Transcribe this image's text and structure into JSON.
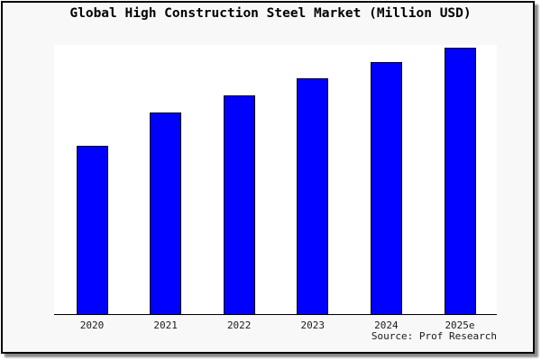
{
  "chart_data": {
    "type": "bar",
    "title": "Global High Construction Steel Market (Million USD)",
    "categories": [
      "2020",
      "2021",
      "2022",
      "2023",
      "2024",
      "2025e"
    ],
    "values": [
      63.3,
      75.8,
      82.2,
      88.6,
      94.6,
      100
    ],
    "values_note": "y-axis has no ticks or labels; values are relative bar heights as percent of tallest bar (2025e = 100)",
    "xlabel": "",
    "ylabel": "",
    "grid": false,
    "legend": false,
    "bar_color": "#0000ff",
    "bar_border_color": "#000000",
    "plot_background": "#ffffff",
    "canvas_background": "#f8f8f8",
    "source_note": "Source: Prof Research"
  }
}
